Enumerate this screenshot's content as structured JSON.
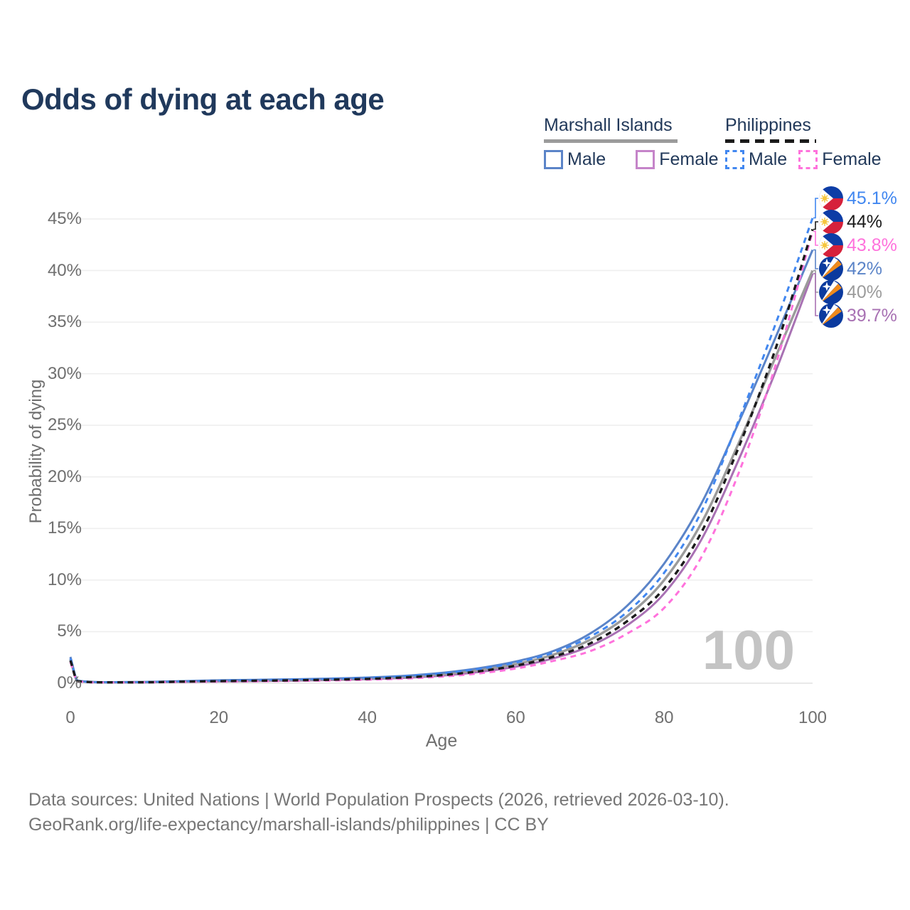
{
  "title": "Odds of dying at each age",
  "legend": {
    "groups": [
      {
        "label": "Marshall Islands",
        "line_style": "solid",
        "line_color": "#9b9b9b",
        "items": [
          {
            "label": "Male",
            "color": "#5b84c8",
            "dashed": false
          },
          {
            "label": "Female",
            "color": "#c584c9",
            "dashed": false
          }
        ]
      },
      {
        "label": "Philippines",
        "line_style": "dashed",
        "line_color": "#1b1b1b",
        "items": [
          {
            "label": "Male",
            "color": "#4187f0",
            "dashed": true
          },
          {
            "label": "Female",
            "color": "#ff72dc",
            "dashed": true
          }
        ]
      }
    ]
  },
  "watermark": "100",
  "footer": {
    "line1": "Data sources: United Nations | World Population Prospects (2026, retrieved 2026-03-10).",
    "line2": "GeoRank.org/life-expectancy/marshall-islands/philippines | CC BY"
  },
  "chart_data": {
    "type": "line",
    "title": "Odds of dying at each age",
    "xlabel": "Age",
    "ylabel": "Probability of dying",
    "xlim": [
      0,
      100
    ],
    "ylim_percent": [
      0,
      45
    ],
    "xticks": [
      0,
      20,
      40,
      60,
      80,
      100
    ],
    "yticks_percent": [
      0,
      5,
      10,
      15,
      20,
      25,
      30,
      35,
      40,
      45
    ],
    "grid": "horizontal-only",
    "legend_position": "top-right",
    "x_ages": [
      0,
      1,
      5,
      10,
      15,
      20,
      25,
      30,
      35,
      40,
      45,
      50,
      55,
      60,
      65,
      70,
      75,
      80,
      85,
      90,
      95,
      100
    ],
    "series": [
      {
        "name": "Marshall Islands Male",
        "country": "Marshall Islands",
        "sex": "Male",
        "color": "#5b84c8",
        "dashed": false,
        "flag": "marshall-islands",
        "end_label": "42%",
        "end_value_percent": 42,
        "values_percent": [
          2.55,
          0.25,
          0.1,
          0.12,
          0.2,
          0.28,
          0.33,
          0.38,
          0.45,
          0.55,
          0.72,
          1.0,
          1.45,
          2.1,
          3.1,
          4.8,
          7.5,
          11.6,
          17.4,
          25.2,
          33.5,
          42.0
        ]
      },
      {
        "name": "Marshall Islands Female",
        "country": "Marshall Islands",
        "sex": "Female",
        "color": "#a871b3",
        "dashed": false,
        "flag": "marshall-islands",
        "end_label": "39.7%",
        "end_value_percent": 39.7,
        "values_percent": [
          2.2,
          0.2,
          0.08,
          0.09,
          0.13,
          0.17,
          0.21,
          0.25,
          0.31,
          0.39,
          0.52,
          0.73,
          1.08,
          1.6,
          2.4,
          3.6,
          5.6,
          8.7,
          13.9,
          21.6,
          30.2,
          39.7
        ]
      },
      {
        "name": "Marshall Islands Total",
        "country": "Marshall Islands",
        "sex": "All",
        "color": "#9b9b9b",
        "dashed": false,
        "flag": "marshall-islands",
        "end_label": "40%",
        "end_value_percent": 40,
        "values_percent": [
          2.35,
          0.22,
          0.09,
          0.1,
          0.17,
          0.23,
          0.27,
          0.32,
          0.38,
          0.47,
          0.62,
          0.87,
          1.27,
          1.85,
          2.75,
          4.2,
          6.5,
          10.0,
          15.5,
          23.2,
          31.6,
          40.0
        ]
      },
      {
        "name": "Philippines Male",
        "country": "Philippines",
        "sex": "Male",
        "color": "#4187f0",
        "dashed": true,
        "flag": "philippines",
        "end_label": "45.1%",
        "end_value_percent": 45.1,
        "values_percent": [
          2.4,
          0.22,
          0.09,
          0.11,
          0.18,
          0.26,
          0.31,
          0.36,
          0.42,
          0.52,
          0.68,
          0.95,
          1.38,
          2.0,
          2.95,
          4.5,
          6.9,
          10.7,
          16.6,
          25.4,
          34.8,
          45.1
        ]
      },
      {
        "name": "Philippines Female",
        "country": "Philippines",
        "sex": "Female",
        "color": "#ff72dc",
        "dashed": true,
        "flag": "philippines",
        "end_label": "43.8%",
        "end_value_percent": 43.8,
        "values_percent": [
          2.05,
          0.18,
          0.07,
          0.08,
          0.12,
          0.15,
          0.18,
          0.22,
          0.27,
          0.34,
          0.45,
          0.64,
          0.95,
          1.42,
          2.15,
          3.1,
          4.8,
          7.3,
          12.2,
          20.3,
          30.8,
          43.8
        ]
      },
      {
        "name": "Philippines Total",
        "country": "Philippines",
        "sex": "All",
        "color": "#1b1b1b",
        "dashed": true,
        "flag": "philippines",
        "end_label": "44%",
        "end_value_percent": 44,
        "values_percent": [
          2.2,
          0.2,
          0.08,
          0.09,
          0.15,
          0.2,
          0.24,
          0.28,
          0.34,
          0.42,
          0.56,
          0.78,
          1.15,
          1.7,
          2.55,
          3.85,
          6.0,
          9.2,
          14.6,
          22.8,
          32.4,
          44.0
        ]
      }
    ]
  }
}
